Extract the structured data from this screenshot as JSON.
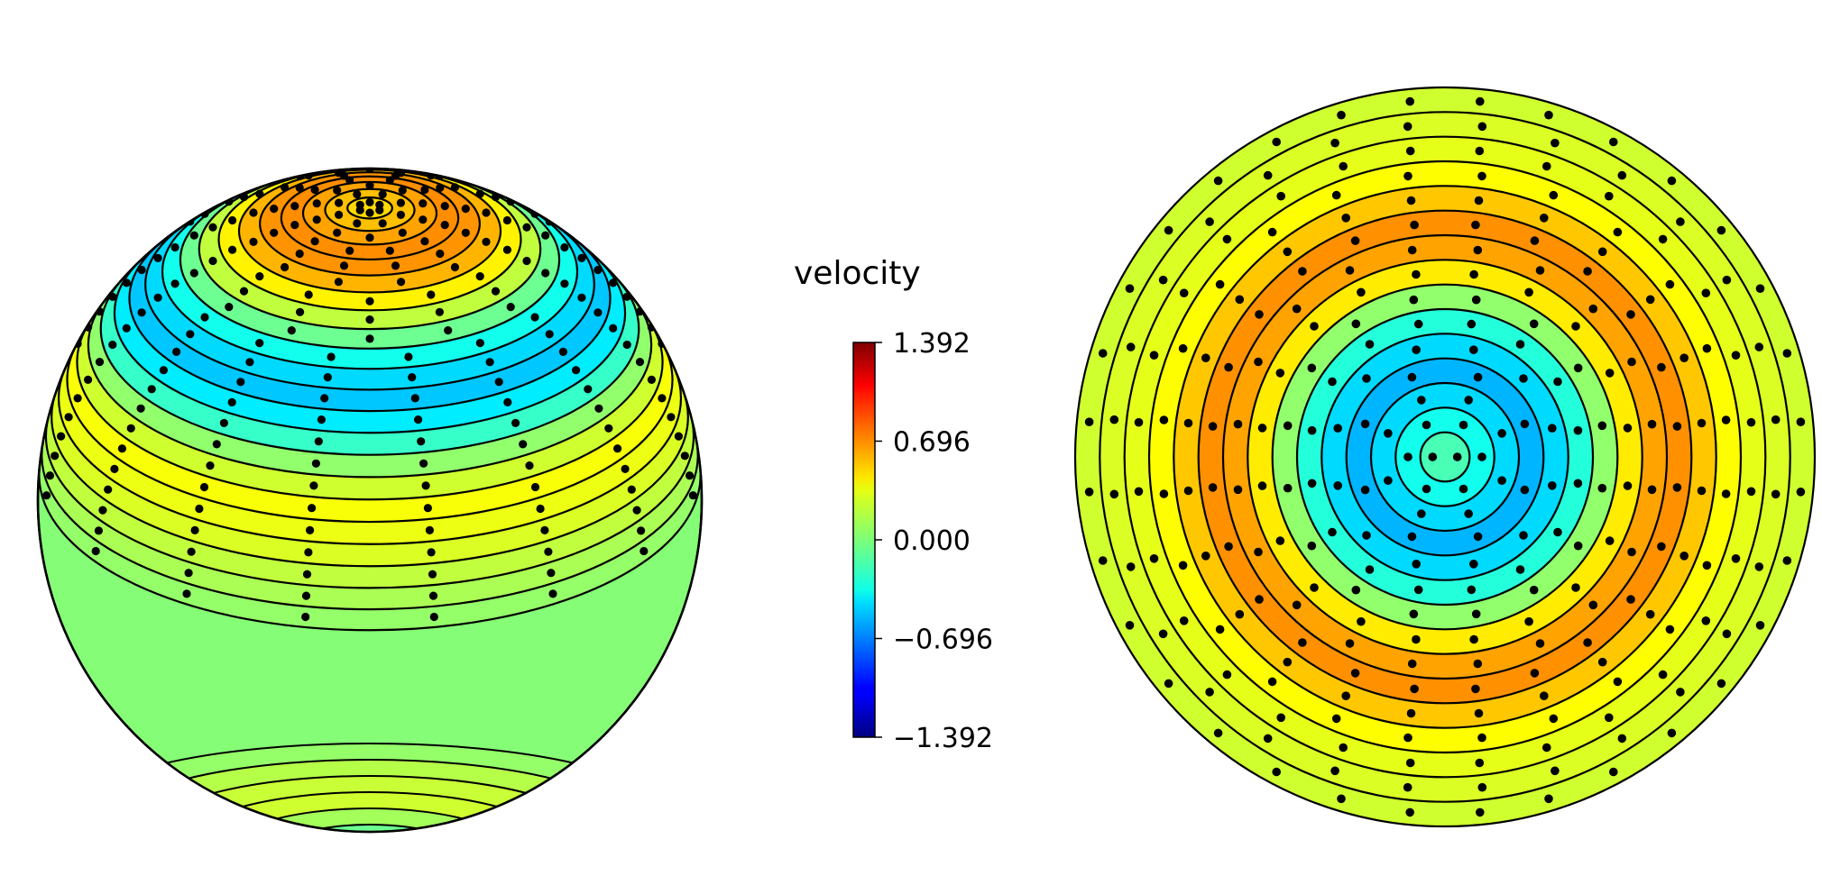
{
  "chart_data": [
    {
      "type": "heatmap",
      "view": "3d-sphere",
      "rings": [
        {
          "value": 0.45,
          "dots": 6
        },
        {
          "value": 0.52,
          "dots": 8
        },
        {
          "value": 0.6,
          "dots": 10
        },
        {
          "value": 0.66,
          "dots": 12
        },
        {
          "value": 0.64,
          "dots": 12
        },
        {
          "value": 0.55,
          "dots": 12
        },
        {
          "value": 0.38,
          "dots": 14
        },
        {
          "value": 0.18,
          "dots": 14
        },
        {
          "value": -0.05,
          "dots": 14
        },
        {
          "value": -0.3,
          "dots": 16
        },
        {
          "value": -0.45,
          "dots": 16
        },
        {
          "value": -0.5,
          "dots": 16
        },
        {
          "value": -0.4,
          "dots": 16
        },
        {
          "value": -0.2,
          "dots": 16
        },
        {
          "value": 0.05,
          "dots": 16
        },
        {
          "value": 0.22,
          "dots": 16
        },
        {
          "value": 0.33,
          "dots": 16
        },
        {
          "value": 0.3,
          "dots": 16
        },
        {
          "value": 0.25,
          "dots": 16
        },
        {
          "value": 0.18,
          "dots": 16
        },
        {
          "value": 0.12,
          "dots": 16
        },
        {
          "value": 0.06,
          "dots": 16
        }
      ],
      "lower_bands": [
        0.06,
        0.15,
        0.2,
        0.22,
        0.1,
        -0.05
      ]
    },
    {
      "type": "heatmap",
      "view": "disk",
      "rings": [
        {
          "value": -0.15,
          "dots": 2
        },
        {
          "value": -0.3,
          "dots": 6
        },
        {
          "value": -0.45,
          "dots": 8
        },
        {
          "value": -0.55,
          "dots": 8
        },
        {
          "value": -0.45,
          "dots": 12
        },
        {
          "value": -0.25,
          "dots": 16
        },
        {
          "value": 0.05,
          "dots": 16
        },
        {
          "value": 0.4,
          "dots": 20
        },
        {
          "value": 0.6,
          "dots": 20
        },
        {
          "value": 0.65,
          "dots": 24
        },
        {
          "value": 0.5,
          "dots": 24
        },
        {
          "value": 0.35,
          "dots": 24
        },
        {
          "value": 0.28,
          "dots": 28
        },
        {
          "value": 0.25,
          "dots": 28
        },
        {
          "value": 0.22,
          "dots": 32
        }
      ]
    }
  ],
  "colorbar": {
    "label": "velocity",
    "min": -1.392,
    "max": 1.392,
    "ticks": [
      "1.392",
      "0.696",
      "0.000",
      "−0.696",
      "−1.392"
    ],
    "colormap": "jet"
  }
}
